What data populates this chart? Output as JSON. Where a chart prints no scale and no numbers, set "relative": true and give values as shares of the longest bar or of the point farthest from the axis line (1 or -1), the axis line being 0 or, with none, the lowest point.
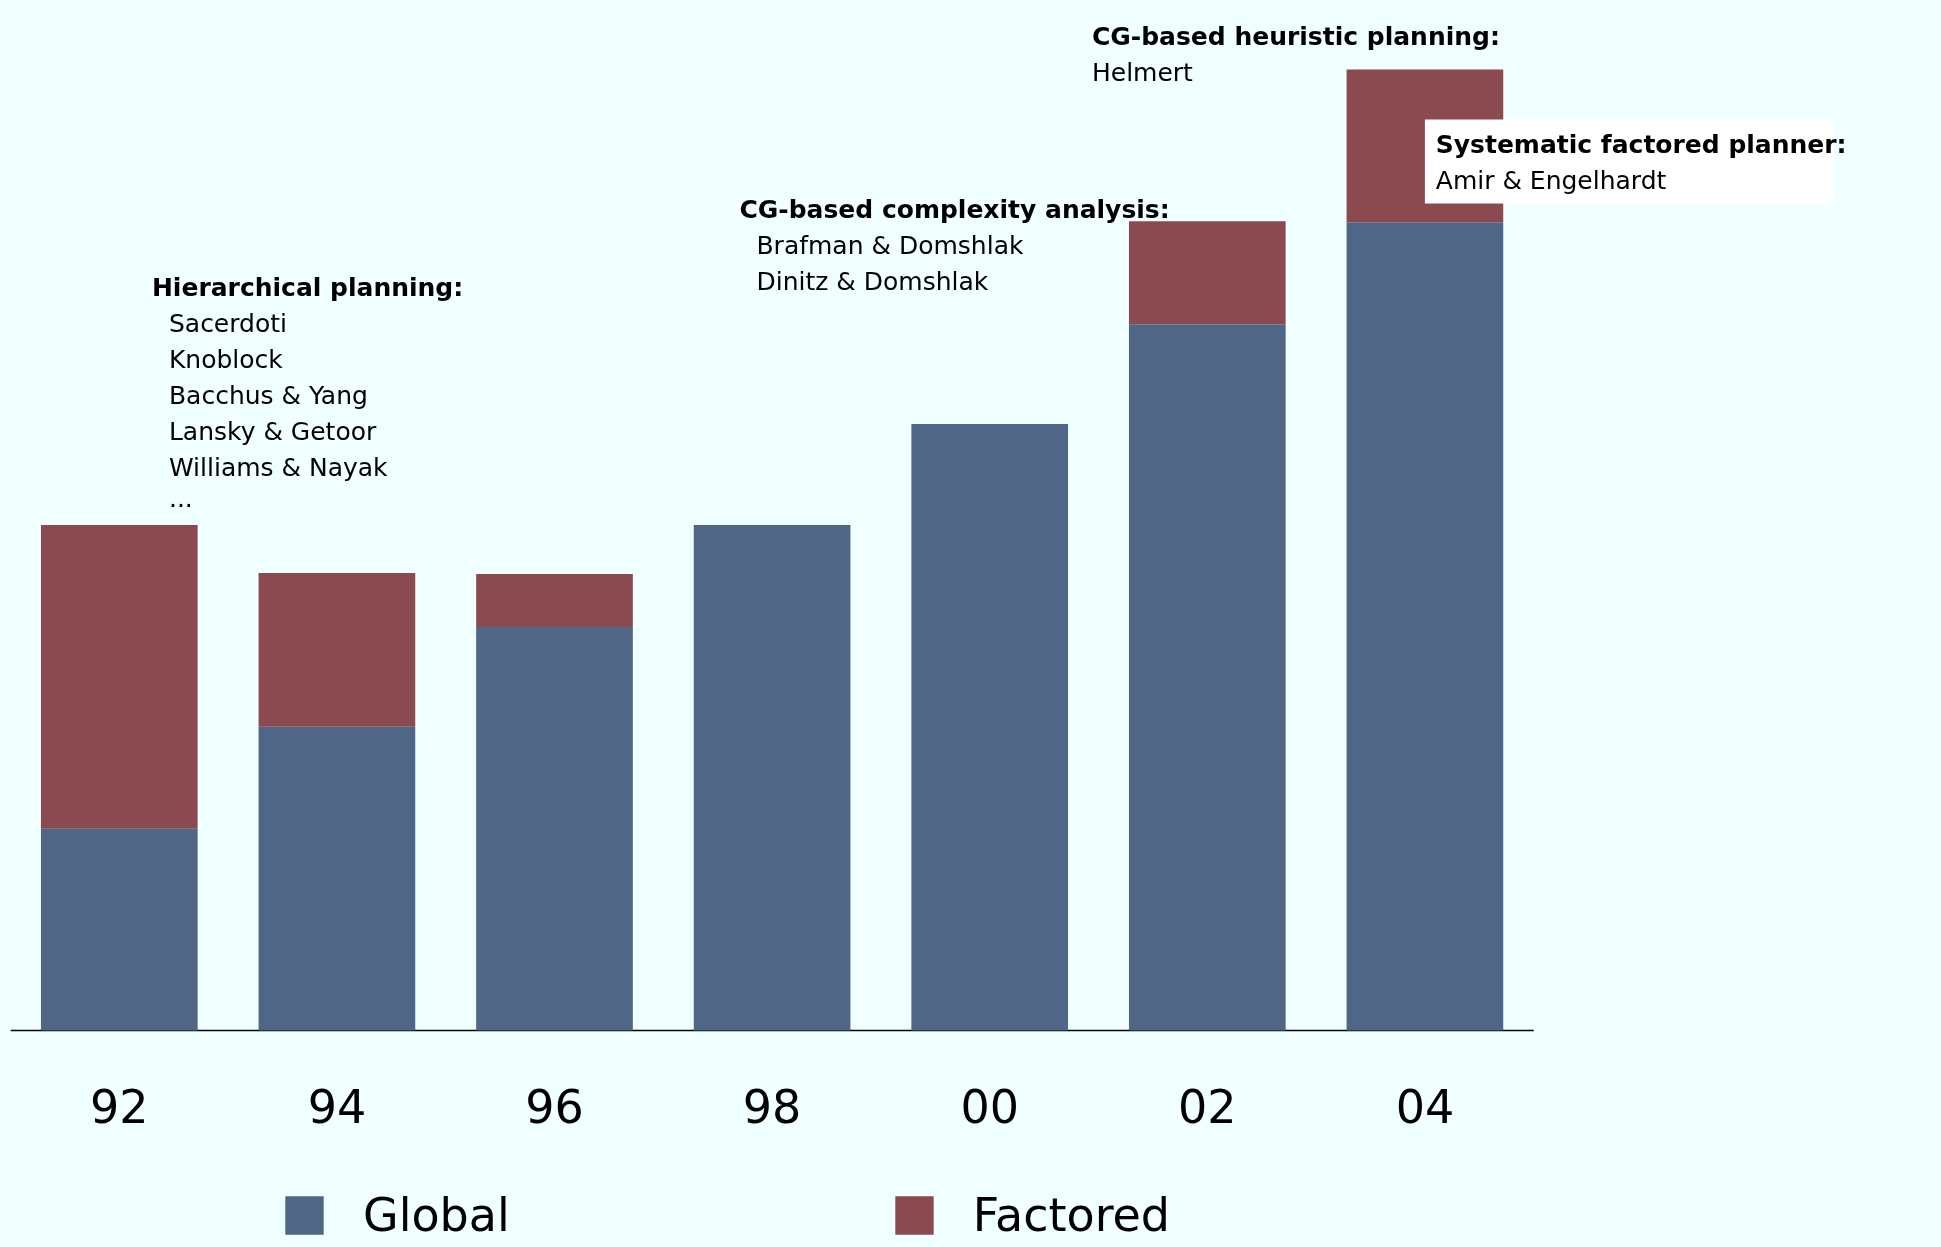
{
  "chart_data": {
    "type": "bar",
    "stacked": true,
    "relative": true,
    "categories": [
      "92",
      "94",
      "96",
      "98",
      "00",
      "02",
      "04"
    ],
    "series": [
      {
        "name": "Global",
        "color": "#4f6686",
        "values": [
          0.21,
          0.316,
          0.42,
          0.526,
          0.631,
          0.735,
          0.841
        ]
      },
      {
        "name": "Factored",
        "color": "#8a4a50",
        "values": [
          0.316,
          0.16,
          0.055,
          0,
          0,
          0.107,
          0.159
        ]
      }
    ],
    "legend": "bottom",
    "grid": false,
    "annotations": [
      "Hierarchical planning:\nSacerdoti\nKnoblock\nBacchus & Yang\nLansky & Getoor\nWilliams & Nayak\n...",
      "CG-based complexity analysis:\nBrafman & Domshlak\nDinitz & Domshlak",
      "CG-based heuristic planning:\nHelmert",
      "Systematic factored planner:\nAmir & Engelhardt"
    ]
  }
}
